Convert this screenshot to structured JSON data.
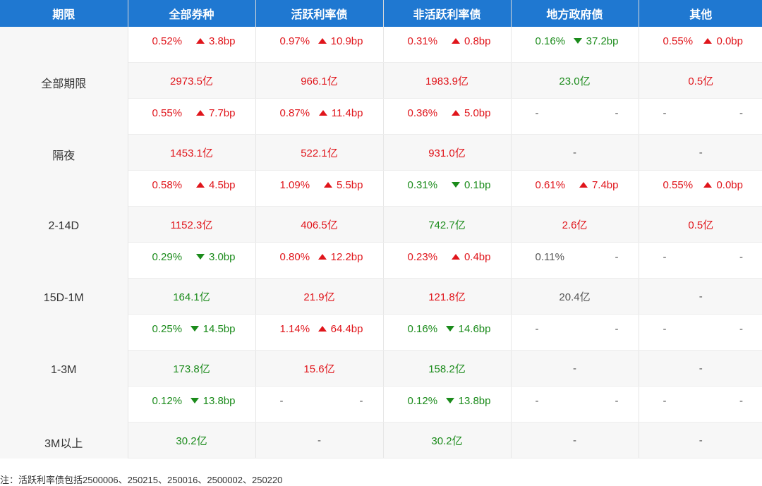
{
  "header": [
    "期限",
    "全部券种",
    "活跃利率债",
    "非活跃利率债",
    "地方政府债",
    "其他"
  ],
  "rows": [
    {
      "label": "全部期限",
      "cells": [
        {
          "rate": "0.52%",
          "dir": "up",
          "bp": "3.8bp",
          "vol": "2973.5亿",
          "color": "red"
        },
        {
          "rate": "0.97%",
          "dir": "up",
          "bp": "10.9bp",
          "vol": "966.1亿",
          "color": "red"
        },
        {
          "rate": "0.31%",
          "dir": "up",
          "bp": "0.8bp",
          "vol": "1983.9亿",
          "color": "red"
        },
        {
          "rate": "0.16%",
          "dir": "down",
          "bp": "37.2bp",
          "vol": "23.0亿",
          "color": "green"
        },
        {
          "rate": "0.55%",
          "dir": "up",
          "bp": "0.0bp",
          "vol": "0.5亿",
          "color": "red"
        }
      ]
    },
    {
      "label": "隔夜",
      "cells": [
        {
          "rate": "0.55%",
          "dir": "up",
          "bp": "7.7bp",
          "vol": "1453.1亿",
          "color": "red"
        },
        {
          "rate": "0.87%",
          "dir": "up",
          "bp": "11.4bp",
          "vol": "522.1亿",
          "color": "red"
        },
        {
          "rate": "0.36%",
          "dir": "up",
          "bp": "5.0bp",
          "vol": "931.0亿",
          "color": "red"
        },
        {
          "rate": "-",
          "dir": "none",
          "bp": "-",
          "vol": "-",
          "color": "gray"
        },
        {
          "rate": "-",
          "dir": "none",
          "bp": "-",
          "vol": "-",
          "color": "gray"
        }
      ]
    },
    {
      "label": "2-14D",
      "cells": [
        {
          "rate": "0.58%",
          "dir": "up",
          "bp": "4.5bp",
          "vol": "1152.3亿",
          "color": "red"
        },
        {
          "rate": "1.09%",
          "dir": "up",
          "bp": "5.5bp",
          "vol": "406.5亿",
          "color": "red"
        },
        {
          "rate": "0.31%",
          "dir": "down",
          "bp": "0.1bp",
          "vol": "742.7亿",
          "color": "green"
        },
        {
          "rate": "0.61%",
          "dir": "up",
          "bp": "7.4bp",
          "vol": "2.6亿",
          "color": "red"
        },
        {
          "rate": "0.55%",
          "dir": "up",
          "bp": "0.0bp",
          "vol": "0.5亿",
          "color": "red"
        }
      ]
    },
    {
      "label": "15D-1M",
      "cells": [
        {
          "rate": "0.29%",
          "dir": "down",
          "bp": "3.0bp",
          "vol": "164.1亿",
          "color": "green"
        },
        {
          "rate": "0.80%",
          "dir": "up",
          "bp": "12.2bp",
          "vol": "21.9亿",
          "color": "red"
        },
        {
          "rate": "0.23%",
          "dir": "up",
          "bp": "0.4bp",
          "vol": "121.8亿",
          "color": "red"
        },
        {
          "rate": "0.11%",
          "dir": "none",
          "bp": "-",
          "vol": "20.4亿",
          "color": "gray"
        },
        {
          "rate": "-",
          "dir": "none",
          "bp": "-",
          "vol": "-",
          "color": "gray"
        }
      ]
    },
    {
      "label": "1-3M",
      "cells": [
        {
          "rate": "0.25%",
          "dir": "down",
          "bp": "14.5bp",
          "vol": "173.8亿",
          "color": "green"
        },
        {
          "rate": "1.14%",
          "dir": "up",
          "bp": "64.4bp",
          "vol": "15.6亿",
          "color": "red"
        },
        {
          "rate": "0.16%",
          "dir": "down",
          "bp": "14.6bp",
          "vol": "158.2亿",
          "color": "green"
        },
        {
          "rate": "-",
          "dir": "none",
          "bp": "-",
          "vol": "-",
          "color": "gray"
        },
        {
          "rate": "-",
          "dir": "none",
          "bp": "-",
          "vol": "-",
          "color": "gray"
        }
      ]
    },
    {
      "label": "3M以上",
      "cells": [
        {
          "rate": "0.12%",
          "dir": "down",
          "bp": "13.8bp",
          "vol": "30.2亿",
          "color": "green"
        },
        {
          "rate": "-",
          "dir": "none",
          "bp": "-",
          "vol": "-",
          "color": "gray"
        },
        {
          "rate": "0.12%",
          "dir": "down",
          "bp": "13.8bp",
          "vol": "30.2亿",
          "color": "green"
        },
        {
          "rate": "-",
          "dir": "none",
          "bp": "-",
          "vol": "-",
          "color": "gray"
        },
        {
          "rate": "-",
          "dir": "none",
          "bp": "-",
          "vol": "-",
          "color": "gray"
        }
      ]
    }
  ],
  "note": "注：活跃利率债包括2500006、250215、250016、2500002、250220",
  "colors": {
    "header_bg": "#1f78d1",
    "up": "#e0151b",
    "down": "#1b8b1b"
  }
}
